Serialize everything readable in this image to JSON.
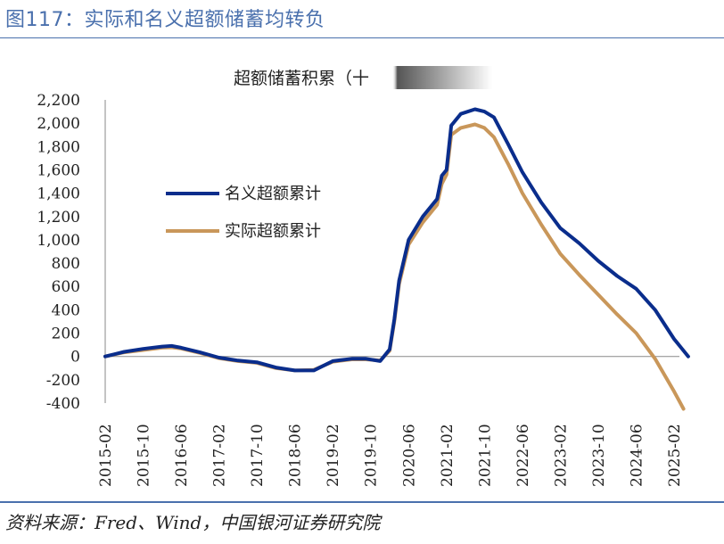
{
  "figure": {
    "label": "图117：实际和名义超额储蓄均转负",
    "source": "资料来源：Fred、Wind，中国银河证券研究院"
  },
  "chart_data": {
    "type": "line",
    "title": "超额储蓄积累（十",
    "xlabel": "",
    "ylabel": "",
    "ylim": [
      -400,
      2200
    ],
    "yticks": [
      -400,
      -200,
      0,
      200,
      400,
      600,
      800,
      1000,
      1200,
      1400,
      1600,
      1800,
      2000,
      2200
    ],
    "ytick_labels": [
      "-400",
      "-200",
      "0",
      "200",
      "400",
      "600",
      "800",
      "1,000",
      "1,200",
      "1,400",
      "1,600",
      "1,800",
      "2,000",
      "2,200"
    ],
    "xtick_labels": [
      "2015-02",
      "2015-10",
      "2016-06",
      "2017-02",
      "2017-10",
      "2018-06",
      "2019-02",
      "2019-10",
      "2020-06",
      "2021-02",
      "2021-10",
      "2022-06",
      "2023-02",
      "2023-10",
      "2024-06",
      "2025-02"
    ],
    "x_start": "2015-02",
    "x_end": "2025-02",
    "grid": false,
    "legend_position": "left",
    "series": [
      {
        "name": "名义超额累计",
        "color": "#0a2d8c",
        "points": [
          [
            "2015-02",
            0
          ],
          [
            "2015-06",
            40
          ],
          [
            "2015-10",
            65
          ],
          [
            "2016-02",
            85
          ],
          [
            "2016-04",
            90
          ],
          [
            "2016-06",
            75
          ],
          [
            "2016-10",
            35
          ],
          [
            "2017-02",
            -10
          ],
          [
            "2017-06",
            -35
          ],
          [
            "2017-10",
            -50
          ],
          [
            "2018-02",
            -95
          ],
          [
            "2018-06",
            -120
          ],
          [
            "2018-10",
            -120
          ],
          [
            "2019-02",
            -40
          ],
          [
            "2019-06",
            -20
          ],
          [
            "2019-09",
            -20
          ],
          [
            "2019-12",
            -40
          ],
          [
            "2020-02",
            60
          ],
          [
            "2020-03",
            320
          ],
          [
            "2020-04",
            650
          ],
          [
            "2020-06",
            1000
          ],
          [
            "2020-09",
            1200
          ],
          [
            "2020-12",
            1350
          ],
          [
            "2021-01",
            1550
          ],
          [
            "2021-02",
            1600
          ],
          [
            "2021-03",
            1980
          ],
          [
            "2021-05",
            2080
          ],
          [
            "2021-08",
            2120
          ],
          [
            "2021-10",
            2100
          ],
          [
            "2021-12",
            2050
          ],
          [
            "2022-03",
            1820
          ],
          [
            "2022-06",
            1580
          ],
          [
            "2022-10",
            1320
          ],
          [
            "2023-02",
            1100
          ],
          [
            "2023-06",
            970
          ],
          [
            "2023-10",
            820
          ],
          [
            "2024-02",
            690
          ],
          [
            "2024-06",
            580
          ],
          [
            "2024-10",
            400
          ],
          [
            "2025-02",
            150
          ],
          [
            "2025-05",
            0
          ]
        ]
      },
      {
        "name": "实际超额累计",
        "color": "#c9975a",
        "points": [
          [
            "2015-02",
            0
          ],
          [
            "2015-06",
            35
          ],
          [
            "2015-10",
            55
          ],
          [
            "2016-02",
            75
          ],
          [
            "2016-04",
            78
          ],
          [
            "2016-06",
            68
          ],
          [
            "2016-10",
            30
          ],
          [
            "2017-02",
            -15
          ],
          [
            "2017-06",
            -40
          ],
          [
            "2017-10",
            -55
          ],
          [
            "2018-02",
            -100
          ],
          [
            "2018-06",
            -120
          ],
          [
            "2018-10",
            -115
          ],
          [
            "2019-02",
            -45
          ],
          [
            "2019-06",
            -25
          ],
          [
            "2019-09",
            -25
          ],
          [
            "2019-12",
            -35
          ],
          [
            "2020-02",
            50
          ],
          [
            "2020-03",
            300
          ],
          [
            "2020-04",
            620
          ],
          [
            "2020-06",
            960
          ],
          [
            "2020-09",
            1150
          ],
          [
            "2020-12",
            1300
          ],
          [
            "2021-01",
            1480
          ],
          [
            "2021-02",
            1560
          ],
          [
            "2021-03",
            1900
          ],
          [
            "2021-05",
            1960
          ],
          [
            "2021-08",
            1990
          ],
          [
            "2021-10",
            1960
          ],
          [
            "2021-12",
            1880
          ],
          [
            "2022-03",
            1650
          ],
          [
            "2022-06",
            1400
          ],
          [
            "2022-10",
            1130
          ],
          [
            "2023-02",
            880
          ],
          [
            "2023-06",
            700
          ],
          [
            "2023-10",
            530
          ],
          [
            "2024-02",
            360
          ],
          [
            "2024-06",
            200
          ],
          [
            "2024-10",
            -20
          ],
          [
            "2025-02",
            -300
          ],
          [
            "2025-04",
            -450
          ]
        ]
      }
    ]
  }
}
